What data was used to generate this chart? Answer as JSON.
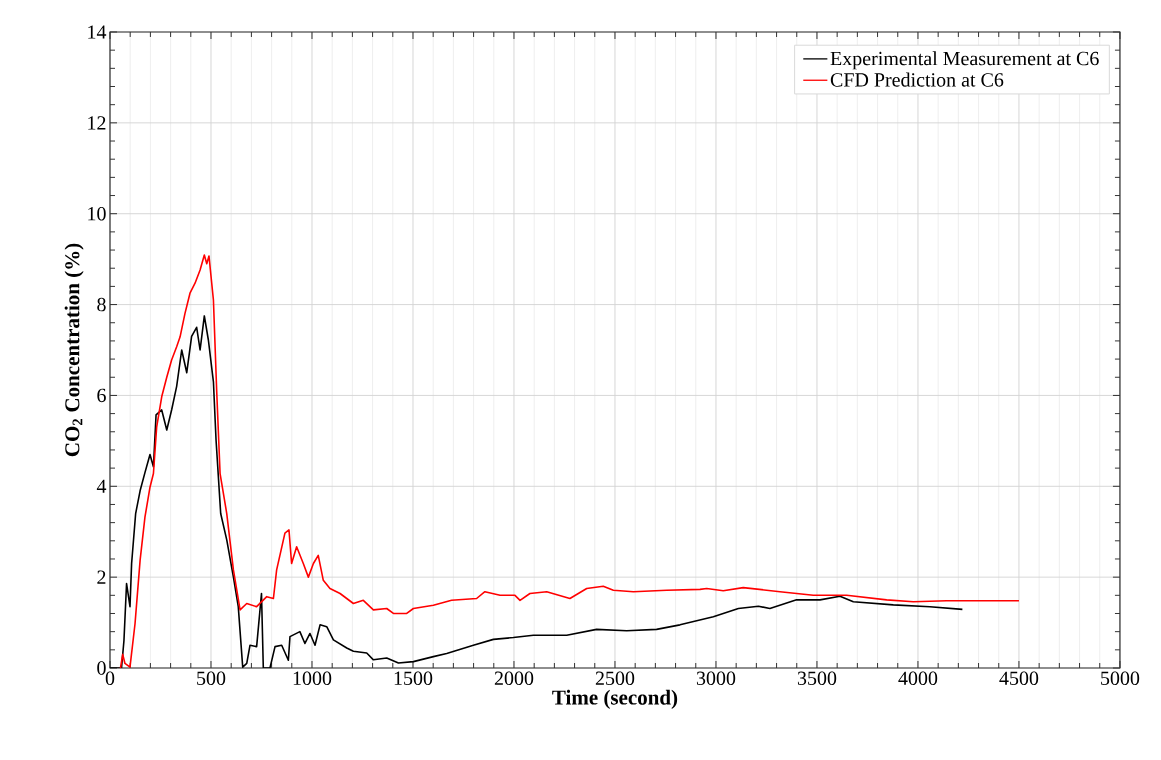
{
  "chart_data": {
    "type": "line",
    "xlabel": "Time (second)",
    "ylabel": "**CO$_{2}$ Concentration (%)**",
    "xlim": [
      0,
      5000
    ],
    "ylim": [
      0,
      14
    ],
    "xticks": [
      0,
      500,
      1000,
      1500,
      2000,
      2500,
      3000,
      3500,
      4000,
      4500,
      5000
    ],
    "yticks": [
      0,
      2,
      4,
      6,
      8,
      10,
      12,
      14
    ],
    "grid": true,
    "legend": "top right",
    "marker": "none",
    "line_style": "solid",
    "series": [
      {
        "name": "Experimental Measurement at C6",
        "color": "#000000",
        "x": [
          0,
          57,
          69,
          82,
          99,
          107,
          127,
          149,
          173,
          198,
          215,
          228,
          256,
          281,
          305,
          330,
          355,
          380,
          404,
          429,
          446,
          467,
          487,
          512,
          525,
          548,
          578,
          611,
          635,
          657,
          677,
          693,
          726,
          750,
          759,
          792,
          817,
          850,
          883,
          891,
          940,
          965,
          990,
          1015,
          1040,
          1073,
          1106,
          1172,
          1205,
          1271,
          1304,
          1370,
          1428,
          1502,
          1601,
          1667,
          1799,
          1898,
          1997,
          2096,
          2261,
          2409,
          2558,
          2706,
          2822,
          2987,
          3111,
          3210,
          3267,
          3399,
          3515,
          3614,
          3680,
          3878,
          4059,
          4220
        ],
        "values": [
          0,
          0,
          0.6,
          1.86,
          1.35,
          2.3,
          3.4,
          3.9,
          4.3,
          4.7,
          4.43,
          5.57,
          5.68,
          5.24,
          5.68,
          6.2,
          7.0,
          6.5,
          7.3,
          7.5,
          7.0,
          7.75,
          7.22,
          6.3,
          5.02,
          3.4,
          2.82,
          2.0,
          1.35,
          0.02,
          0.1,
          0.5,
          0.47,
          1.64,
          0,
          0,
          0.47,
          0.5,
          0.17,
          0.69,
          0.8,
          0.54,
          0.76,
          0.5,
          0.95,
          0.91,
          0.62,
          0.44,
          0.37,
          0.33,
          0.18,
          0.22,
          0.11,
          0.14,
          0.25,
          0.32,
          0.5,
          0.63,
          0.67,
          0.72,
          0.72,
          0.85,
          0.82,
          0.85,
          0.95,
          1.13,
          1.31,
          1.36,
          1.31,
          1.5,
          1.5,
          1.58,
          1.46,
          1.39,
          1.35,
          1.29
        ]
      },
      {
        "name": "CFD Prediction at C6",
        "color": "#ff0000",
        "x": [
          52,
          63,
          74,
          99,
          124,
          149,
          173,
          198,
          215,
          231,
          256,
          281,
          305,
          330,
          347,
          371,
          396,
          421,
          446,
          467,
          479,
          490,
          512,
          528,
          545,
          578,
          611,
          644,
          677,
          726,
          776,
          809,
          825,
          866,
          886,
          899,
          924,
          957,
          982,
          1007,
          1031,
          1056,
          1089,
          1139,
          1205,
          1254,
          1304,
          1370,
          1403,
          1469,
          1502,
          1601,
          1691,
          1815,
          1856,
          1931,
          2005,
          2030,
          2079,
          2162,
          2277,
          2360,
          2442,
          2492,
          2591,
          2756,
          2921,
          2954,
          3036,
          3135,
          3317,
          3482,
          3647,
          3845,
          3977,
          4142,
          4500
        ],
        "values": [
          0,
          0.3,
          0.1,
          0.02,
          0.98,
          2.37,
          3.32,
          3.98,
          4.28,
          5.3,
          5.97,
          6.4,
          6.78,
          7.07,
          7.29,
          7.8,
          8.25,
          8.47,
          8.76,
          9.09,
          8.9,
          9.07,
          8.1,
          6.12,
          4.28,
          3.4,
          2.16,
          1.28,
          1.42,
          1.35,
          1.57,
          1.53,
          2.16,
          2.97,
          3.04,
          2.3,
          2.67,
          2.3,
          2.0,
          2.3,
          2.48,
          1.93,
          1.75,
          1.64,
          1.42,
          1.49,
          1.28,
          1.31,
          1.2,
          1.2,
          1.31,
          1.38,
          1.49,
          1.53,
          1.68,
          1.6,
          1.6,
          1.49,
          1.64,
          1.68,
          1.53,
          1.75,
          1.8,
          1.71,
          1.68,
          1.71,
          1.73,
          1.75,
          1.7,
          1.77,
          1.68,
          1.6,
          1.6,
          1.5,
          1.46,
          1.48,
          1.48
        ]
      }
    ]
  }
}
